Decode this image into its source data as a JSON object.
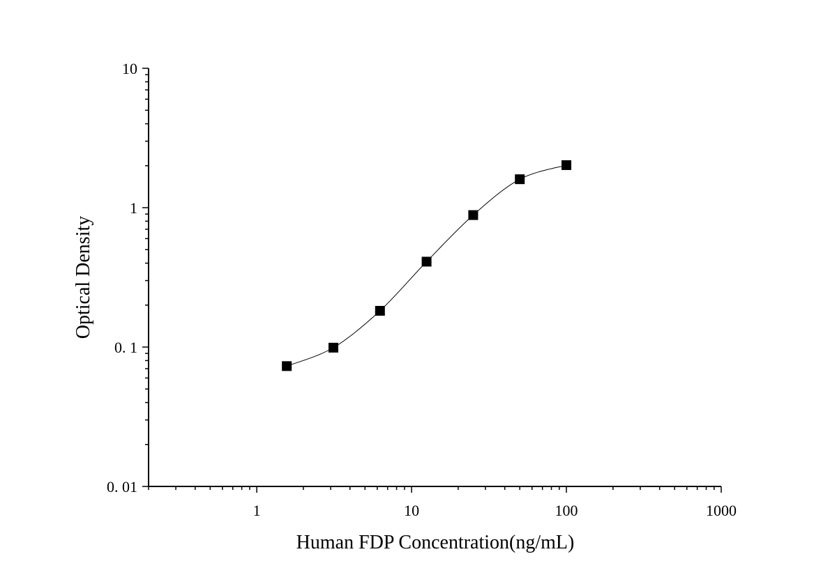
{
  "chart_data": {
    "type": "scatter",
    "title": "",
    "xlabel": "Human FDP Concentration(ng/mL)",
    "ylabel": "Optical Density",
    "x_scale": "log",
    "y_scale": "log",
    "xlim": [
      0.2,
      1000
    ],
    "ylim": [
      0.01,
      10
    ],
    "x_ticks": [
      {
        "value": 1,
        "label": "1"
      },
      {
        "value": 10,
        "label": "10"
      },
      {
        "value": 100,
        "label": "100"
      },
      {
        "value": 1000,
        "label": "1000"
      }
    ],
    "y_ticks": [
      {
        "value": 0.01,
        "label": "0. 01"
      },
      {
        "value": 0.1,
        "label": "0. 1"
      },
      {
        "value": 1,
        "label": "1"
      },
      {
        "value": 10,
        "label": "10"
      }
    ],
    "grid": false,
    "legend": "none",
    "marker_color": "#000000",
    "line_color": "#000000",
    "marker": "square",
    "series": [
      {
        "x": [
          1.5625,
          3.125,
          6.25,
          12.5,
          25,
          50,
          100
        ],
        "y": [
          0.073,
          0.099,
          0.182,
          0.41,
          0.885,
          1.6,
          2.02
        ]
      }
    ]
  }
}
